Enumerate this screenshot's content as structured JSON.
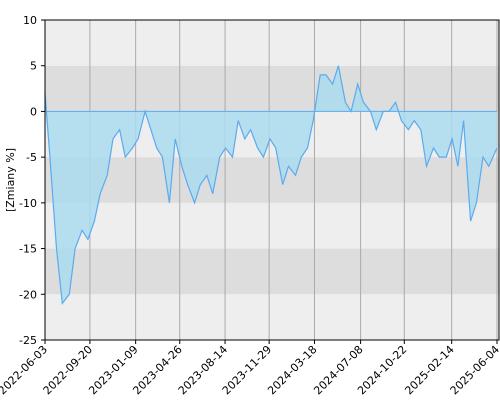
{
  "chart_data": {
    "type": "area",
    "y_label": "[Zmiany %]",
    "x": [
      "2022-06-03",
      "2022-06-15",
      "2022-07-01",
      "2022-07-15",
      "2022-08-01",
      "2022-08-15",
      "2022-09-01",
      "2022-09-15",
      "2022-10-01",
      "2022-10-15",
      "2022-11-01",
      "2022-11-15",
      "2022-12-01",
      "2022-12-15",
      "2023-01-01",
      "2023-01-15",
      "2023-02-01",
      "2023-02-15",
      "2023-03-01",
      "2023-03-15",
      "2023-04-01",
      "2023-04-15",
      "2023-05-01",
      "2023-05-15",
      "2023-06-01",
      "2023-06-15",
      "2023-07-01",
      "2023-07-15",
      "2023-08-01",
      "2023-08-15",
      "2023-09-01",
      "2023-09-15",
      "2023-10-01",
      "2023-10-15",
      "2023-11-01",
      "2023-11-15",
      "2023-12-01",
      "2023-12-15",
      "2024-01-01",
      "2024-01-15",
      "2024-02-01",
      "2024-02-15",
      "2024-03-01",
      "2024-03-15",
      "2024-04-01",
      "2024-04-15",
      "2024-05-01",
      "2024-05-15",
      "2024-06-01",
      "2024-06-15",
      "2024-07-01",
      "2024-07-15",
      "2024-08-01",
      "2024-08-15",
      "2024-09-01",
      "2024-09-15",
      "2024-10-01",
      "2024-10-15",
      "2024-11-01",
      "2024-11-15",
      "2024-12-01",
      "2024-12-15",
      "2025-01-01",
      "2025-01-15",
      "2025-02-01",
      "2025-02-15",
      "2025-03-01",
      "2025-03-15",
      "2025-04-01",
      "2025-04-15",
      "2025-05-01",
      "2025-05-15",
      "2025-06-04"
    ],
    "series": [
      {
        "color": "#5aabf0",
        "fill": "#aadbee",
        "values": [
          2,
          -5,
          -15,
          -21,
          -20,
          -15,
          -13,
          -14,
          -12,
          -9,
          -7,
          -3,
          -2,
          -5,
          -4,
          -3,
          0,
          -2,
          -4,
          -5,
          -10,
          -3,
          -6,
          -8,
          -10,
          -8,
          -7,
          -9,
          -5,
          -4,
          -5,
          -1,
          -3,
          -2,
          -4,
          -5,
          -3,
          -4,
          -8,
          -6,
          -7,
          -5,
          -4,
          -1,
          4,
          4,
          3,
          5,
          1,
          0,
          3,
          1,
          0,
          -2,
          0,
          0,
          1,
          -1,
          -2,
          -1,
          -2,
          -6,
          -4,
          -5,
          -5,
          -3,
          -6,
          -1,
          -12,
          -10,
          -5,
          -6,
          -4
        ]
      }
    ],
    "xlim": [
      "2022-06-03",
      "2025-06-04"
    ],
    "xticks": [
      "2022-06-03",
      "2022-09-20",
      "2023-01-09",
      "2023-04-26",
      "2023-08-14",
      "2023-11-29",
      "2024-03-18",
      "2024-07-08",
      "2024-10-22",
      "2025-02-14",
      "2025-06-04"
    ],
    "ylim": [
      -25,
      10
    ],
    "yticks": [
      -25,
      -20,
      -15,
      -10,
      -5,
      0,
      5,
      10
    ],
    "band_colors": [
      "#eeeeee",
      "#dddddd"
    ],
    "grid_color": "#aaaaaa"
  }
}
